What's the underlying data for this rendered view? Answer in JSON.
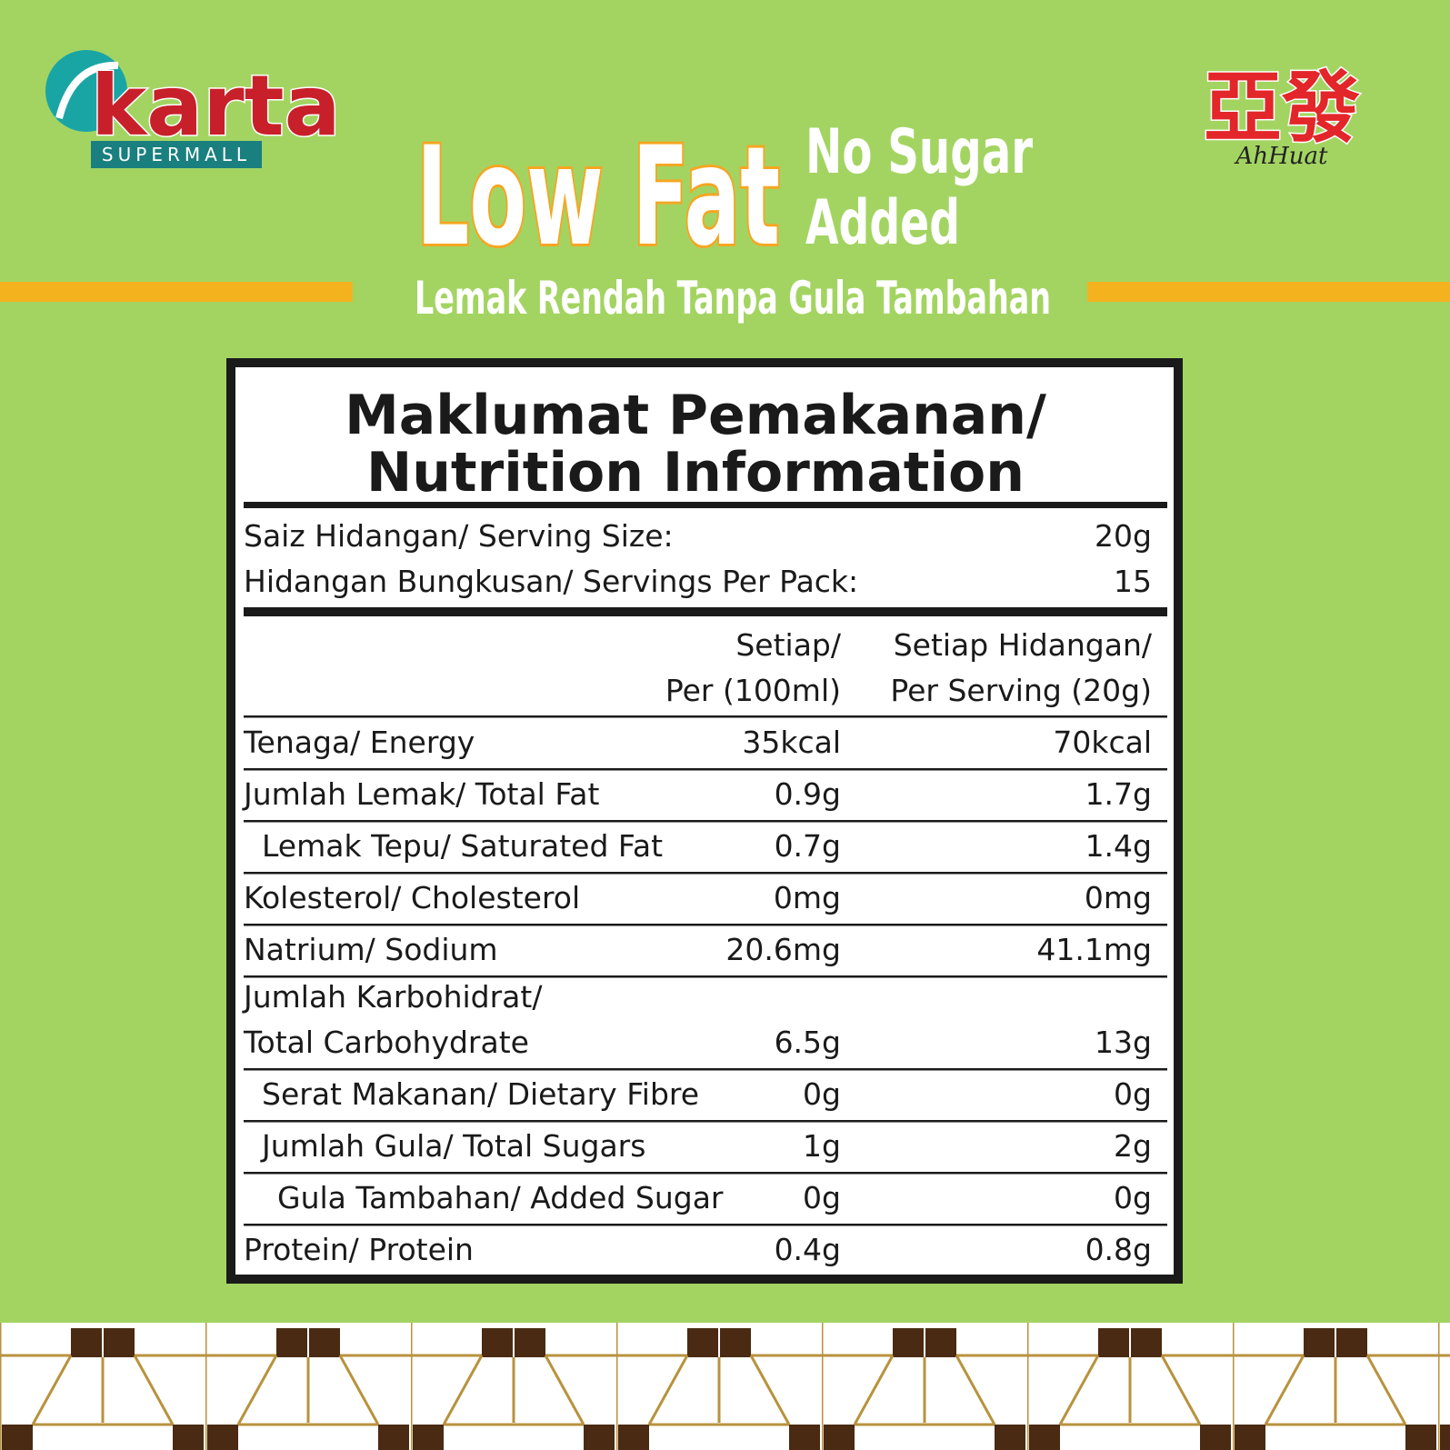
{
  "logos": {
    "left": {
      "name": "karta",
      "tagline": "SUPERMALL"
    },
    "right": {
      "name": "亞發",
      "tagline": "AhHuat"
    }
  },
  "headline": {
    "main": "Low Fat",
    "side": [
      "No Sugar",
      "Added"
    ],
    "subtitle": "Lemak Rendah Tanpa Gula Tambahan"
  },
  "panel": {
    "title": [
      "Maklumat Pemakanan/",
      "Nutrition Information"
    ],
    "serving": [
      [
        "Saiz Hidangan/ Serving Size:",
        "20g"
      ],
      [
        "Hidangan Bungkusan/ Servings Per Pack:",
        "15"
      ]
    ],
    "columns": [
      [
        "Setiap/",
        "Per (100ml)"
      ],
      [
        "Setiap Hidangan/",
        "Per Serving (20g)"
      ]
    ],
    "rows": [
      {
        "label": [
          "Tenaga/ Energy"
        ],
        "values": [
          "35kcal",
          "70kcal"
        ]
      },
      {
        "label": [
          "Jumlah Lemak/ Total Fat"
        ],
        "values": [
          "0.9g",
          "1.7g"
        ]
      },
      {
        "label": [
          "Lemak Tepu/ Saturated Fat"
        ],
        "values": [
          "0.7g",
          "1.4g"
        ]
      },
      {
        "label": [
          "Kolesterol/ Cholesterol"
        ],
        "values": [
          "0mg",
          "0mg"
        ]
      },
      {
        "label": [
          "Natrium/ Sodium"
        ],
        "values": [
          "20.6mg",
          "41.1mg"
        ]
      },
      {
        "label": [
          "Jumlah Karbohidrat/",
          "Total Carbohydrate"
        ],
        "values": [
          "6.5g",
          "13g"
        ]
      },
      {
        "label": [
          "Serat Makanan/ Dietary Fibre"
        ],
        "values": [
          "0g",
          "0g"
        ]
      },
      {
        "label": [
          "Jumlah Gula/ Total Sugars"
        ],
        "values": [
          "1g",
          "2g"
        ]
      },
      {
        "label": [
          "Gula Tambahan/ Added Sugar"
        ],
        "values": [
          "0g",
          "0g"
        ]
      },
      {
        "label": [
          "Protein/ Protein"
        ],
        "values": [
          "0.4g",
          "0.8g"
        ]
      }
    ]
  }
}
